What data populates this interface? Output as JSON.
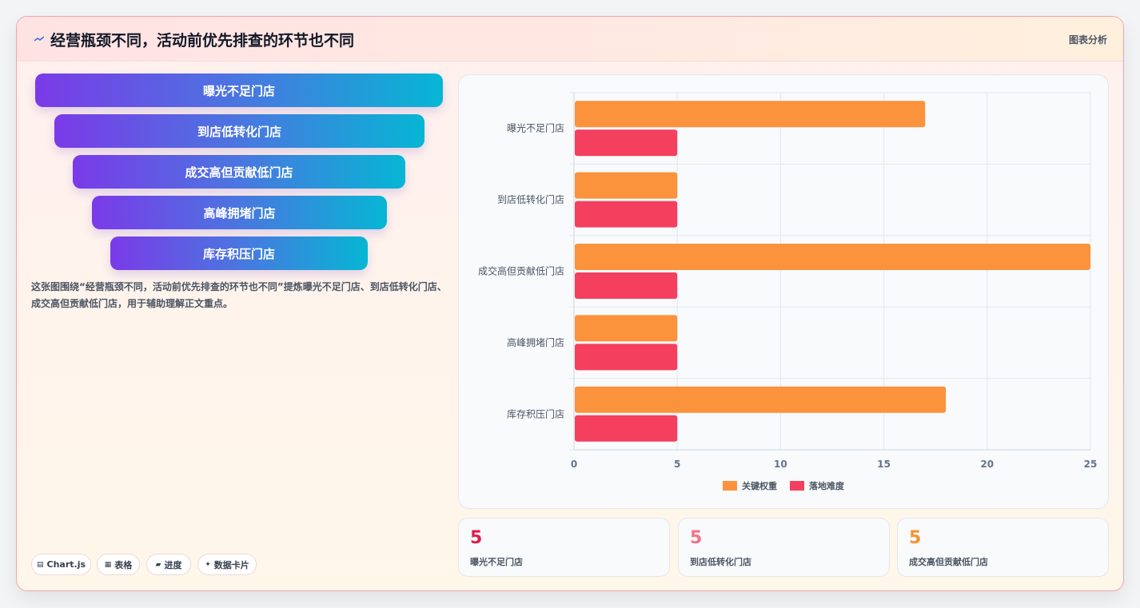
{
  "header": {
    "title": "经营瓶颈不同，活动前优先排查的环节也不同",
    "tag": "图表分析",
    "icon": "line-chart-icon"
  },
  "funnel": {
    "items": [
      "曝光不足门店",
      "到店低转化门店",
      "成交高但贡献低门店",
      "高峰拥堵门店",
      "库存积压门店"
    ]
  },
  "description": "这张图围绕“经营瓶颈不同，活动前优先排查的环节也不同”提炼曝光不足门店、到店低转化门店、成交高但贡献低门店，用于辅助理解正文重点。",
  "chips": [
    {
      "icon": "chart-js-icon",
      "label": "Chart.js"
    },
    {
      "icon": "table-icon",
      "label": "表格"
    },
    {
      "icon": "progress-icon",
      "label": "进度"
    },
    {
      "icon": "data-card-icon",
      "label": "数据卡片"
    }
  ],
  "stats": [
    {
      "value": "5",
      "label": "曝光不足门店",
      "color": "#e11d48"
    },
    {
      "value": "5",
      "label": "到店低转化门店",
      "color": "#f43f5e"
    },
    {
      "value": "5",
      "label": "成交高但贡献低门店",
      "color": "#f97316"
    }
  ],
  "colors": {
    "funnel_start": "#7b3ae8",
    "funnel_end": "#06b6d4",
    "series_weight": "#fb923c",
    "series_difficulty": "#f43f5e"
  },
  "chart_data": {
    "type": "bar",
    "orientation": "horizontal",
    "categories": [
      "曝光不足门店",
      "到店低转化门店",
      "成交高但贡献低门店",
      "高峰拥堵门店",
      "库存积压门店"
    ],
    "series": [
      {
        "name": "关键权重",
        "values": [
          17,
          5,
          25,
          5,
          18
        ],
        "color": "#fb923c"
      },
      {
        "name": "落地难度",
        "values": [
          5,
          5,
          5,
          5,
          5
        ],
        "color": "#f43f5e"
      }
    ],
    "xlim": [
      0,
      25
    ],
    "xticks": [
      0,
      5,
      10,
      15,
      20,
      25
    ],
    "grid": true,
    "legend": "bottom"
  }
}
